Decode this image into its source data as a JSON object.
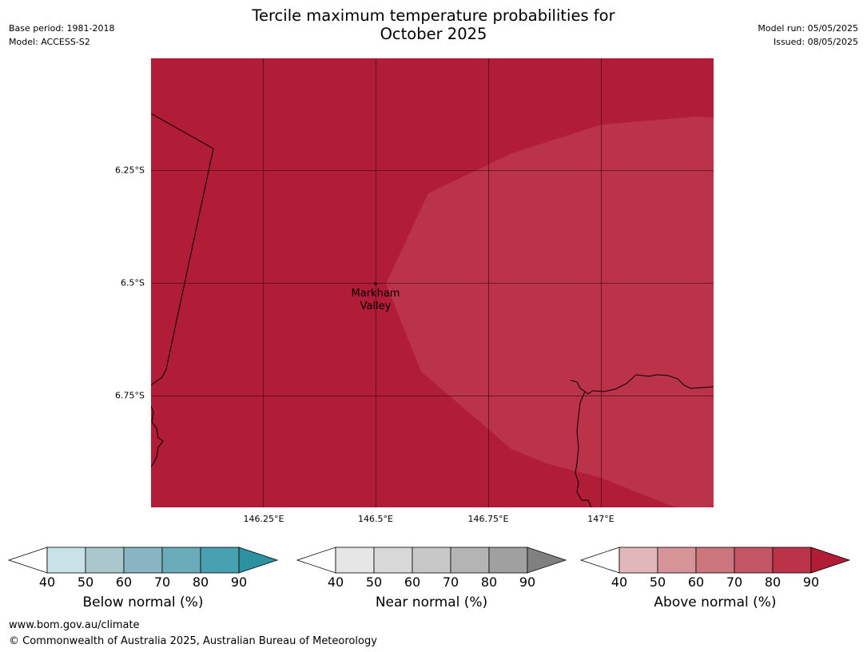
{
  "header": {
    "title_line1": "Tercile maximum temperature probabilities for",
    "title_line2": "October 2025",
    "base_period": "Base period: 1981-2018",
    "model": "Model: ACCESS-S2",
    "model_run": "Model run: 05/05/2025",
    "issued": "Issued: 08/05/2025"
  },
  "map": {
    "lat_labels": [
      "6.25°S",
      "6.5°S",
      "6.75°S"
    ],
    "lon_labels": [
      "146.25°E",
      "146.5°E",
      "146.75°E",
      "147°E"
    ],
    "place_line1": "Markham",
    "place_line2": "Valley",
    "colors": {
      "above_80_90": "#b11c36",
      "above_70_80": "#bb3349"
    },
    "categories": [
      "Above normal 80-90%",
      "Above normal 70-80%"
    ]
  },
  "legends": [
    {
      "title": "Below normal (%)",
      "ticks": [
        "40",
        "50",
        "60",
        "70",
        "80",
        "90"
      ],
      "colors": [
        "#ffffff",
        "#c9e2e7",
        "#a9c7cd",
        "#88b5c1",
        "#6aacba",
        "#48a1b0",
        "#2c92a0"
      ]
    },
    {
      "title": "Near normal (%)",
      "ticks": [
        "40",
        "50",
        "60",
        "70",
        "80",
        "90"
      ],
      "colors": [
        "#ffffff",
        "#e6e6e6",
        "#d8d8d8",
        "#c8c8c8",
        "#b4b4b4",
        "#a0a0a0",
        "#808080"
      ]
    },
    {
      "title": "Above normal (%)",
      "ticks": [
        "40",
        "50",
        "60",
        "70",
        "80",
        "90"
      ],
      "colors": [
        "#ffffff",
        "#e1b7bb",
        "#d69499",
        "#cc757c",
        "#c25665",
        "#bb3349",
        "#b11c36"
      ]
    }
  ],
  "footer": {
    "url": "www.bom.gov.au/climate",
    "copyright": "© Commonwealth of Australia 2025, Australian Bureau of Meteorology"
  }
}
